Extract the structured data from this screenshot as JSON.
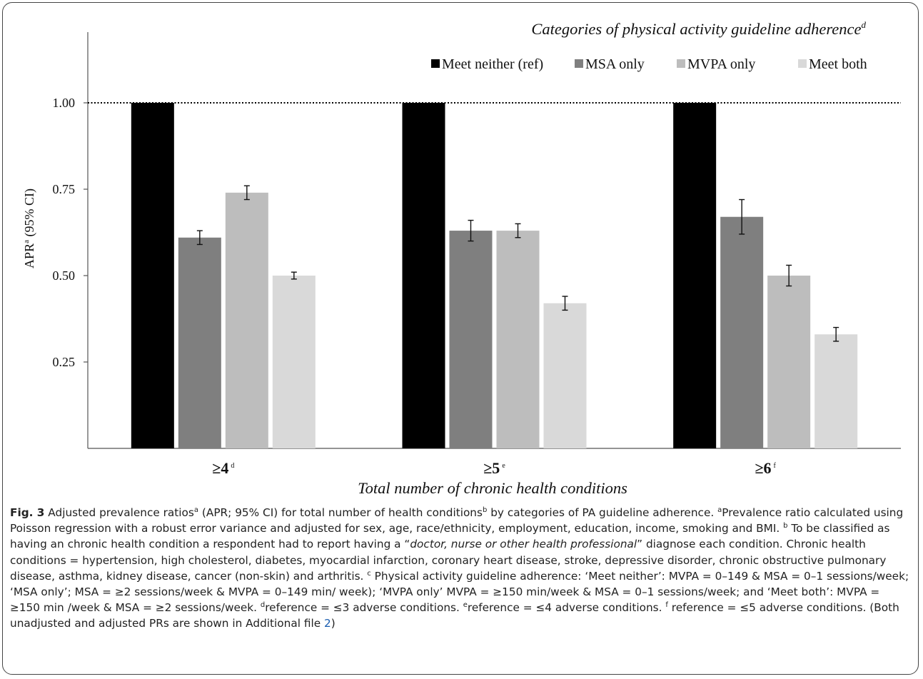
{
  "chart_data": {
    "type": "bar",
    "legend_title": "Categories of physical activity guideline adherence",
    "legend_title_sup": "d",
    "legend_position": "top-right",
    "xlabel": "Total number of chronic health conditions",
    "ylabel": "APR",
    "ylabel_sup": "a",
    "ylabel_suffix": " (95% CI)",
    "ylim": [
      0.0,
      1.0
    ],
    "yticks": [
      "1.00",
      "0.75",
      "0.50",
      "0.25"
    ],
    "ytick_values": [
      1.0,
      0.75,
      0.5,
      0.25
    ],
    "reference_line": 1.0,
    "grid": false,
    "categories": [
      {
        "label": "≥4",
        "sup": "d"
      },
      {
        "label": "≥5",
        "sup": "e"
      },
      {
        "label": "≥6",
        "sup": "f"
      }
    ],
    "series": [
      {
        "name": "Meet neither (ref)",
        "color": "#000000",
        "values": [
          1.0,
          1.0,
          1.0
        ],
        "ci_low": [
          null,
          null,
          null
        ],
        "ci_high": [
          null,
          null,
          null
        ]
      },
      {
        "name": "MSA only",
        "color": "#7f7f7f",
        "values": [
          0.61,
          0.63,
          0.67
        ],
        "ci_low": [
          0.59,
          0.6,
          0.62
        ],
        "ci_high": [
          0.63,
          0.66,
          0.72
        ]
      },
      {
        "name": "MVPA only",
        "color": "#bdbdbd",
        "values": [
          0.74,
          0.63,
          0.5
        ],
        "ci_low": [
          0.72,
          0.61,
          0.47
        ],
        "ci_high": [
          0.76,
          0.65,
          0.53
        ]
      },
      {
        "name": "Meet both",
        "color": "#d9d9d9",
        "values": [
          0.5,
          0.42,
          0.33
        ],
        "ci_low": [
          0.49,
          0.4,
          0.31
        ],
        "ci_high": [
          0.51,
          0.44,
          0.35
        ]
      }
    ]
  },
  "caption": {
    "fig_label": "Fig. 3",
    "p1": " Adjusted prevalence ratios",
    "p1_sup": "a",
    "p2": " (APR; 95% CI) for total number of health conditions",
    "p2_sup": "b",
    "p3": " by categories of PA guideline adherence. ",
    "p3_sup": "a",
    "p4": "Prevalence ratio calculated using Poisson regression with a robust error variance and adjusted for sex, age, race/ethnicity, employment, education, income, smoking and BMI. ",
    "p4_sup": "b",
    "p5": " To be classified as having an chronic health condition a respondent had to report having a “",
    "p5_italic": "doctor, nurse or other health professional",
    "p6": "” diagnose each condition. Chronic health conditions = hypertension, high cholesterol, diabetes, myocardial infarction, coronary heart disease, stroke, depressive disorder, chronic obstructive pulmonary disease, asthma, kidney disease, cancer (non-skin) and arthritis. ",
    "p6_sup": "c",
    "p7": " Physical activity guideline adherence: ‘Meet neither’: MVPA = 0–149 & MSA = 0–1 sessions/week; ‘MSA only’; MSA = ≥2 sessions/week & MVPA = 0–149 min/ week); ‘MVPA only’ MVPA = ≥150 min/week & MSA = 0–1 sessions/week; and ‘Meet both’: MVPA = ≥150 min /week & MSA = ≥2 sessions/week. ",
    "p7_sup": "d",
    "p8": "reference = ≤3 adverse conditions. ",
    "p8_sup": "e",
    "p9": "reference = ≤4 adverse conditions. ",
    "p9_sup": "f",
    "p10": " reference = ≤5 adverse conditions. (Both unadjusted and adjusted PRs are shown in Additional file ",
    "p10_link": "2",
    "p11": ")"
  }
}
